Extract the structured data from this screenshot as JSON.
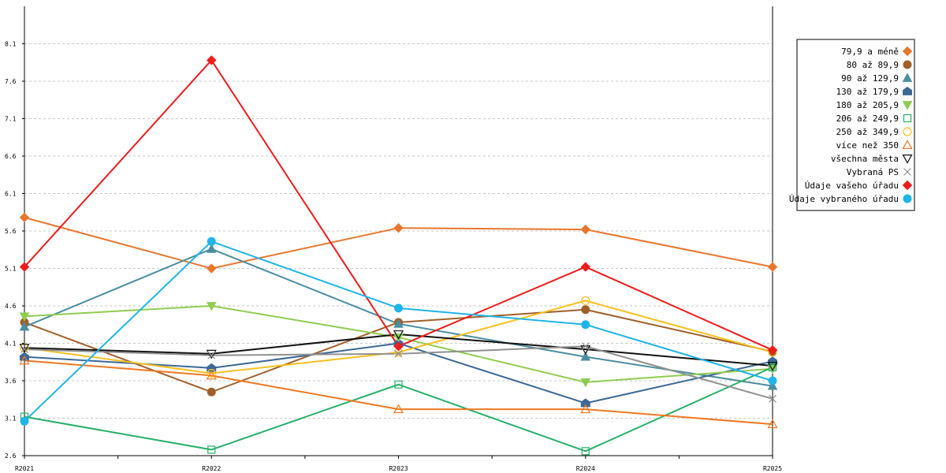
{
  "chart_data": {
    "type": "line",
    "title": "",
    "xlabel": "",
    "ylabel": "",
    "categories": [
      "R2021",
      "R2022",
      "R2023",
      "R2024",
      "R2025"
    ],
    "ylim": [
      2.6,
      8.6
    ],
    "yticks": [
      2.6,
      3.1,
      3.6,
      4.1,
      4.6,
      5.1,
      5.6,
      6.1,
      6.6,
      7.1,
      7.6,
      8.1
    ],
    "ytick_labels": [
      "2.6",
      "3.1",
      "3.6",
      "4.1",
      "4.6",
      "5.1",
      "5.6",
      "6.1",
      "6.6",
      "7.1",
      "7.6",
      "8.1"
    ],
    "grid": true,
    "legend_position": "right",
    "series": [
      {
        "name": "79,9 a méně",
        "color": "#e8772e",
        "marker": "diamond",
        "values": [
          5.78,
          5.1,
          5.64,
          5.62,
          5.12
        ]
      },
      {
        "name": "80 až 89,9",
        "color": "#a0602a",
        "marker": "circle",
        "values": [
          4.38,
          3.45,
          4.38,
          4.55,
          3.99
        ]
      },
      {
        "name": "90 až 129,9",
        "color": "#4a8ea0",
        "marker": "triangle-up",
        "values": [
          4.32,
          5.36,
          4.36,
          3.92,
          3.53
        ]
      },
      {
        "name": "130 až 179,9",
        "color": "#3d6896",
        "marker": "pentagon",
        "values": [
          3.92,
          3.77,
          4.1,
          3.3,
          3.86
        ]
      },
      {
        "name": "180 až 205,9",
        "color": "#90cc50",
        "marker": "triangle-down",
        "values": [
          4.46,
          4.6,
          4.18,
          3.58,
          3.76
        ]
      },
      {
        "name": "206 až 249,9",
        "color": "#26b068",
        "marker": "square-open",
        "values": [
          3.12,
          2.68,
          3.55,
          2.66,
          3.78
        ]
      },
      {
        "name": "250 až 349,9",
        "color": "#f8c020",
        "marker": "circle-open",
        "values": [
          4.04,
          3.7,
          3.98,
          4.67,
          3.98
        ]
      },
      {
        "name": "více než 350",
        "color": "#f07820",
        "marker": "triangle-up-open",
        "values": [
          3.87,
          3.67,
          3.22,
          3.22,
          3.02
        ]
      },
      {
        "name": "všechna města",
        "color": "#111111",
        "marker": "triangle-down-open",
        "values": [
          4.04,
          3.96,
          4.22,
          4.02,
          3.8
        ]
      },
      {
        "name": "Vybraná PS",
        "color": "#909090",
        "marker": "cross",
        "values": [
          4.02,
          3.94,
          3.96,
          4.06,
          3.36
        ]
      },
      {
        "name": "Údaje vašeho úřadu",
        "color": "#ee1c1c",
        "marker": "diamond",
        "values": [
          5.12,
          7.88,
          4.06,
          5.12,
          4.01
        ]
      },
      {
        "name": "Údaje vybraného úřadu",
        "color": "#20b4e8",
        "marker": "circle",
        "values": [
          3.06,
          5.46,
          4.57,
          4.35,
          3.6
        ]
      }
    ]
  }
}
